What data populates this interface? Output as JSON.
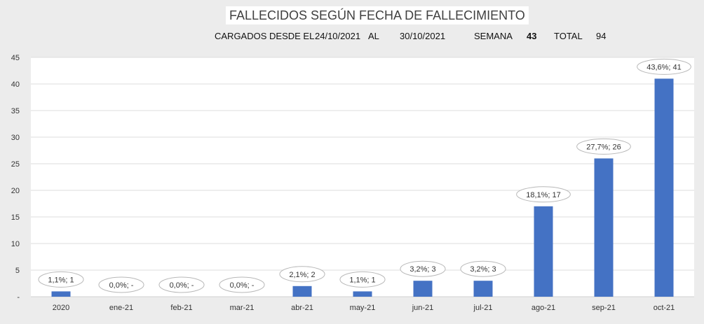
{
  "header": {
    "title": "FALLECIDOS SEGÚN FECHA DE FALLECIMIENTO",
    "loaded_label": "CARGADOS DESDE EL",
    "date_from": "24/10/2021",
    "al_label": "AL",
    "date_to": "30/10/2021",
    "week_label": "SEMANA",
    "week_value": "43",
    "total_label": "TOTAL",
    "total_value": "94"
  },
  "chart_data": {
    "type": "bar",
    "categories": [
      "2020",
      "ene-21",
      "feb-21",
      "mar-21",
      "abr-21",
      "may-21",
      "jun-21",
      "jul-21",
      "ago-21",
      "sep-21",
      "oct-21"
    ],
    "values": [
      1,
      0,
      0,
      0,
      2,
      1,
      3,
      3,
      17,
      26,
      41
    ],
    "data_labels": [
      "1,1%; 1",
      "0,0%; -",
      "0,0%; -",
      "0,0%; -",
      "2,1%; 2",
      "1,1%; 1",
      "3,2%; 3",
      "3,2%; 3",
      "18,1%; 17",
      "27,7%; 26",
      "43,6%; 41"
    ],
    "ylim": [
      0,
      45
    ],
    "yticks": [
      "-",
      "5",
      "10",
      "15",
      "20",
      "25",
      "30",
      "35",
      "40",
      "45"
    ],
    "grid": true,
    "bar_color": "#4472c4"
  }
}
